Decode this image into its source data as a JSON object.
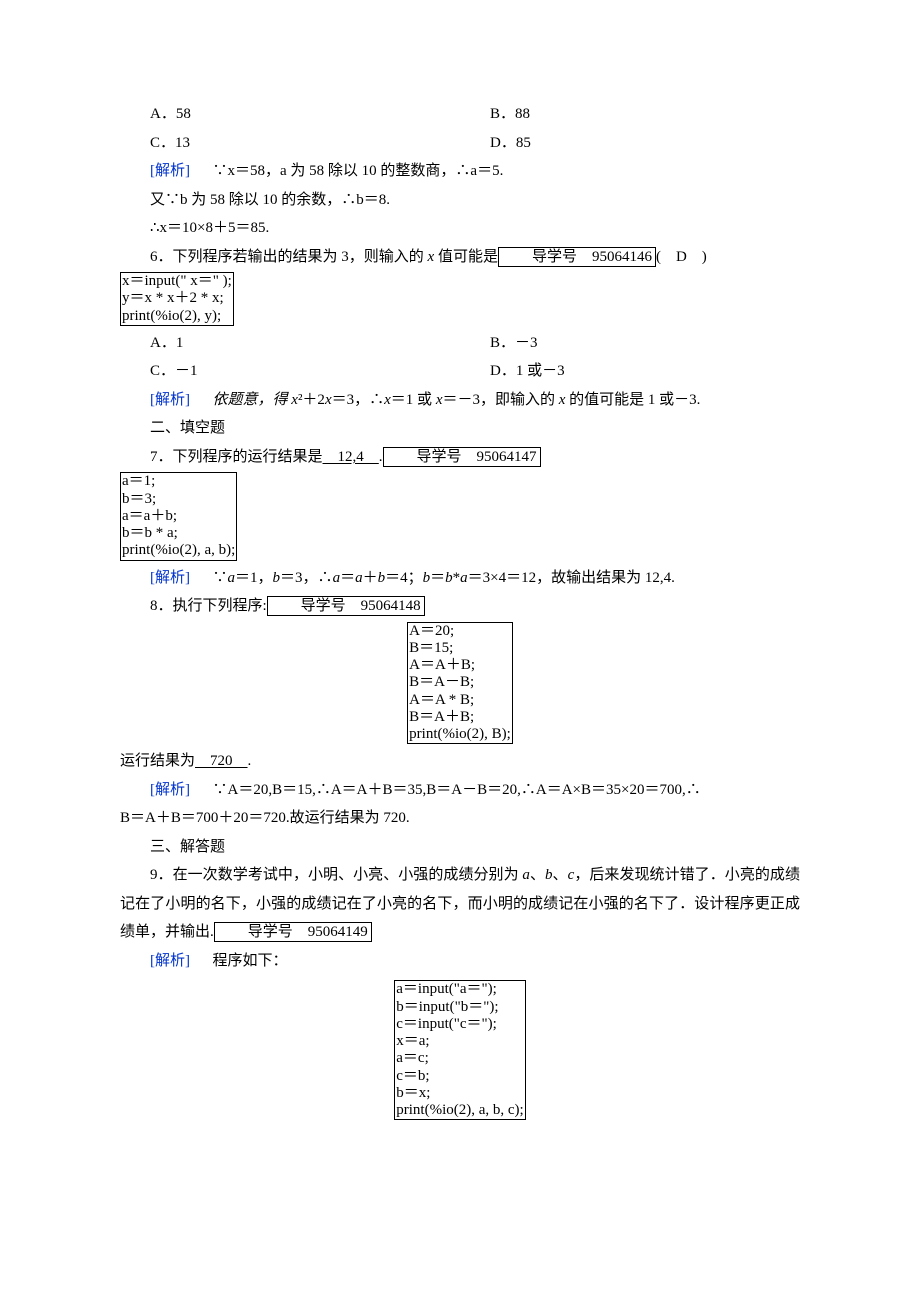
{
  "q5": {
    "optA": "A．58",
    "optB": "B．88",
    "optC": "C．13",
    "optD": "D．85",
    "analLabel": "[解析]",
    "anal1": "∵x＝58，a 为 58 除以 10 的整数商，∴a＝5.",
    "anal2": "又∵b 为 58 除以 10 的余数，∴b＝8.",
    "anal3": "∴x＝10×8＋5＝85."
  },
  "q6": {
    "stem1": "6．下列程序若输出的结果为 3，则输入的 ",
    "stemVar": "x",
    "stem2": " 值可能是",
    "idLabel": "导学号　95064146",
    "stemTail": "(　D　)",
    "code": "x＝input(\" x＝\" );\ny＝x * x＋2 * x;\nprint(%io(2), y);",
    "optA": "A．1",
    "optB": "B．－3",
    "optC": "C．－1",
    "optD": "D．1 或－3",
    "analLabel": "[解析]",
    "anal": "依题意，得 x²＋2x＝3，∴x＝1 或 x＝－3，即输入的 x 的值可能是 1 或－3."
  },
  "section2": "二、填空题",
  "q7": {
    "stem1": "7．下列程序的运行结果是",
    "blank": "　12,4　",
    "stem2": ".",
    "idLabel": "导学号　95064147",
    "code": "a＝1;\nb＝3;\na＝a＋b;\nb＝b * a;\nprint(%io(2), a, b);",
    "analLabel": "[解析]",
    "anal": "∵a＝1，b＝3，∴a＝a＋b＝4；b＝b*a＝3×4＝12，故输出结果为 12,4."
  },
  "q8": {
    "stem": "8．执行下列程序:",
    "idLabel": "导学号　95064148",
    "code": "A＝20;\nB＝15;\nA＝A＋B;\nB＝A－B;\nA＝A * B;\nB＝A＋B;\nprint(%io(2), B);",
    "res1": "运行结果为",
    "blank": "　720　",
    "res2": ".",
    "analLabel": "[解析]",
    "anal1": "∵A＝20,B＝15,∴A＝A＋B＝35,B＝A－B＝20,∴A＝A×B＝35×20＝700,∴",
    "anal2": "B＝A＋B＝700＋20＝720.故运行结果为 720."
  },
  "section3": "三、解答题",
  "q9": {
    "stem1": "9．在一次数学考试中，小明、小亮、小强的成绩分别为 a、b、c，后来发现统计错了．小亮的成绩记在了小明的名下，小强的成绩记在了小亮的名下，而小明的成绩记在小强的名下了．设计程序更正成绩单，并输出.",
    "idLabel": "导学号　95064149",
    "analLabel": "[解析]",
    "analText": "程序如下：",
    "code": "a＝input(\"a＝\");\nb＝input(\"b＝\");\nc＝input(\"c＝\");\nx＝a;\na＝c;\nc＝b;\nb＝x;\nprint(%io(2), a, b, c);"
  }
}
